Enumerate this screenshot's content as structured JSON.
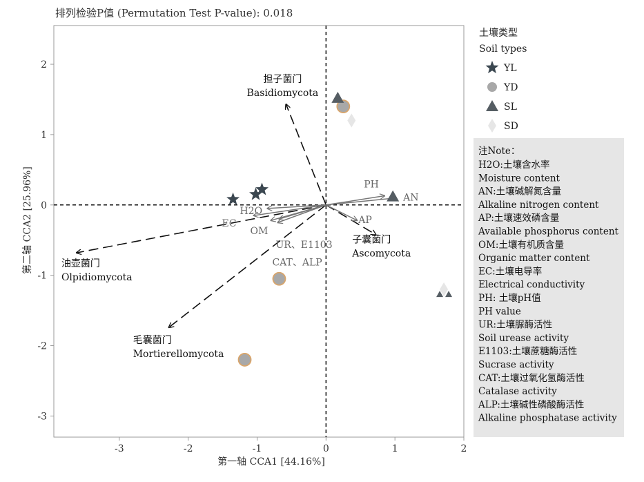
{
  "chart_data": {
    "type": "scatter",
    "title": "排列检验P值 (Permutation Test P-value): 0.018",
    "xlabel": "第一轴 CCA1 [44.16%]",
    "ylabel": "第二轴 CCA2 [25.96%]",
    "xlim": [
      -3.95,
      2.0
    ],
    "ylim": [
      -3.3,
      2.55
    ],
    "xticks": [
      -3,
      -2,
      -1,
      0,
      1,
      2
    ],
    "yticks": [
      -3,
      -2,
      -1,
      0,
      1,
      2
    ],
    "reference_lines": [
      {
        "axis": "x",
        "value": 0
      },
      {
        "axis": "y",
        "value": 0
      }
    ],
    "grid": false,
    "series": [
      {
        "name": "YL",
        "marker": "star",
        "color": "#3b4750",
        "points": [
          {
            "x": -1.35,
            "y": 0.08
          },
          {
            "x": -1.02,
            "y": 0.15
          },
          {
            "x": -0.93,
            "y": 0.22
          }
        ]
      },
      {
        "name": "YD",
        "marker": "circle",
        "color": "#a8a8a8",
        "edge": "#d9a56b",
        "points": [
          {
            "x": 0.25,
            "y": 1.4
          },
          {
            "x": -0.68,
            "y": -1.05
          },
          {
            "x": -1.18,
            "y": -2.2
          }
        ]
      },
      {
        "name": "SL",
        "marker": "triangle",
        "color": "#555d63",
        "points": [
          {
            "x": 0.17,
            "y": 1.52
          },
          {
            "x": 0.97,
            "y": 0.12
          },
          {
            "x": 1.65,
            "y": -1.27
          },
          {
            "x": 1.78,
            "y": -1.27
          }
        ]
      },
      {
        "name": "SD",
        "marker": "diamond",
        "color": "#e6e6e6",
        "points": [
          {
            "x": 0.37,
            "y": 1.2
          },
          {
            "x": 1.71,
            "y": -1.2
          }
        ]
      }
    ],
    "env_vectors": [
      {
        "label": "PH",
        "x": 0.85,
        "y": 0.13
      },
      {
        "label": "AN",
        "x": 1.02,
        "y": 0.1
      },
      {
        "label": "AP",
        "x": 0.45,
        "y": -0.22
      },
      {
        "label": "H2O",
        "x": -0.85,
        "y": -0.05
      },
      {
        "label": "EC",
        "x": -1.05,
        "y": -0.15
      },
      {
        "label": "OM",
        "x": -0.8,
        "y": -0.22
      },
      {
        "label": "UR、E1103",
        "x": -0.68,
        "y": -0.2
      },
      {
        "label": "CAT、ALP",
        "x": -0.7,
        "y": -0.25
      }
    ],
    "taxa_vectors": [
      {
        "cn": "担子菌门",
        "en": "Basidiomycota",
        "x": -0.58,
        "y": 1.43
      },
      {
        "cn": "子囊菌门",
        "en": "Ascomycota",
        "x": 0.72,
        "y": -0.42
      },
      {
        "cn": "油壶菌门",
        "en": "Olpidiomycota",
        "x": -3.62,
        "y": -0.68
      },
      {
        "cn": "毛囊菌门",
        "en": "Mortierellomycota",
        "x": -2.28,
        "y": -1.74
      }
    ]
  },
  "legend": {
    "title_cn": "土壤类型",
    "title_en": "Soil types",
    "items": [
      "YL",
      "YD",
      "SL",
      "SD"
    ]
  },
  "note": {
    "title": "注Note：",
    "lines": [
      "H2O:土壤含水率",
      "Moisture content",
      "AN:土壤碱解氮含量",
      "Alkaline nitrogen content",
      "AP:土壤速效磷含量",
      "Available phosphorus content",
      "OM:土壤有机质含量",
      "Organic matter content",
      "EC:土壤电导率",
      "Electrical conductivity",
      "PH: 土壤pH值",
      "PH value",
      "UR:土壤脲酶活性",
      "Soil urease activity",
      "E1103:土壤蔗糖酶活性",
      "Sucrase activity",
      "CAT:土壤过氧化氢酶活性",
      "Catalase activity",
      "ALP:土壤碱性磷酸酶活性",
      "Alkaline phosphatase activity"
    ],
    "background": "#e6e6e6"
  }
}
